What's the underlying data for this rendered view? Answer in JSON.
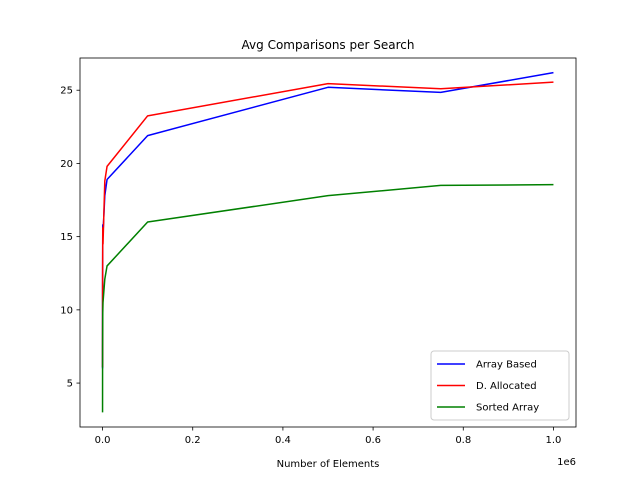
{
  "chart_data": {
    "type": "line",
    "title": "Avg Comparisons per Search",
    "xlabel": "Number of Elements",
    "ylabel": "",
    "x_offset_label": "1e6",
    "xlim": [
      -50000,
      1050000
    ],
    "ylim": [
      2.0,
      27.2
    ],
    "xticks": [
      0,
      200000,
      400000,
      600000,
      800000,
      1000000
    ],
    "xtick_labels": [
      "0.0",
      "0.2",
      "0.4",
      "0.6",
      "0.8",
      "1.0"
    ],
    "yticks": [
      5,
      10,
      15,
      20,
      25
    ],
    "ytick_labels": [
      "5",
      "10",
      "15",
      "20",
      "25"
    ],
    "grid": false,
    "legend_position": "lower-right",
    "x": [
      10,
      50,
      100,
      500,
      1000,
      5000,
      10000,
      100000,
      500000,
      750000,
      1000000
    ],
    "series": [
      {
        "name": "Array Based",
        "color": "#0000ff",
        "values": [
          6.0,
          10.2,
          11.4,
          15.8,
          15.2,
          17.8,
          18.9,
          21.9,
          25.2,
          24.85,
          26.2
        ]
      },
      {
        "name": "D. Allocated",
        "color": "#ff0000",
        "values": [
          6.1,
          10.8,
          12.0,
          15.6,
          14.5,
          18.8,
          19.8,
          23.25,
          25.45,
          25.1,
          25.55
        ]
      },
      {
        "name": "Sorted Array",
        "color": "#008000",
        "values": [
          3.0,
          6.2,
          7.5,
          9.8,
          10.5,
          12.1,
          13.0,
          16.0,
          17.8,
          18.5,
          18.55
        ]
      }
    ]
  }
}
